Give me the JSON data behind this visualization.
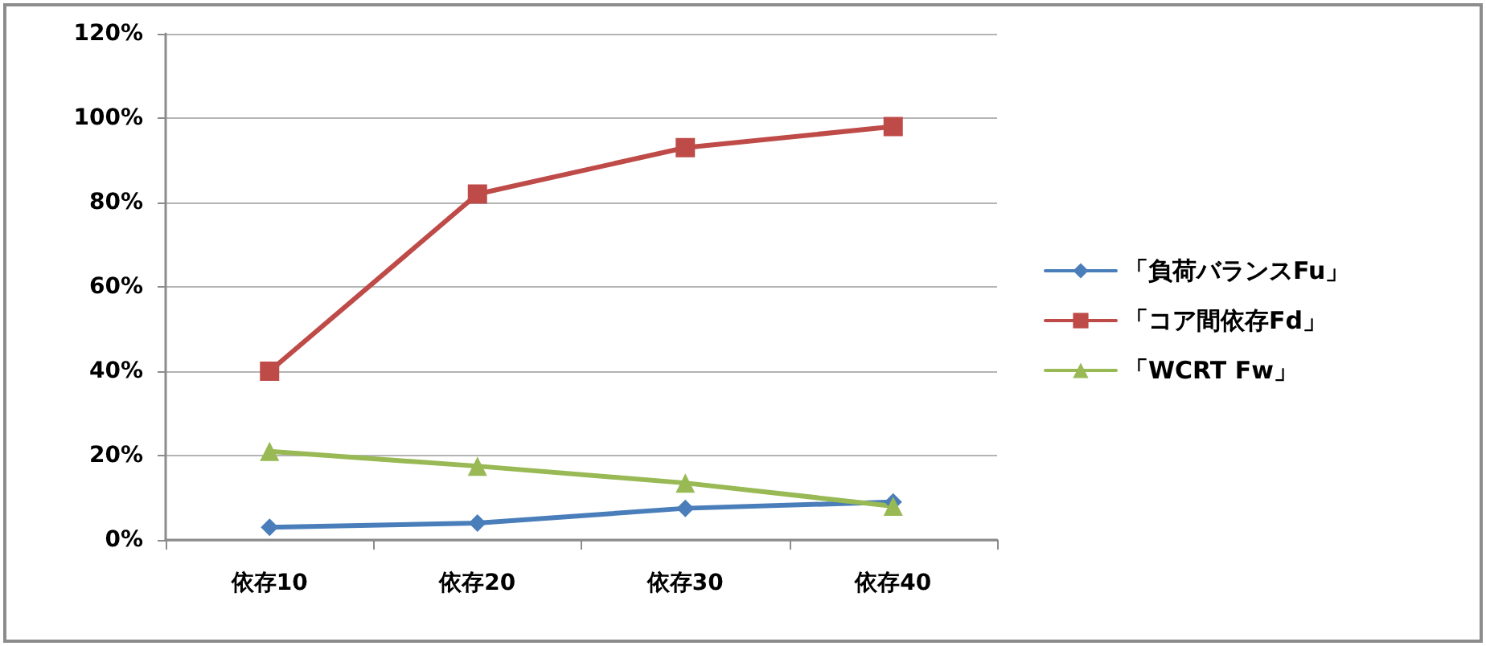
{
  "chart_data": {
    "type": "line",
    "categories": [
      "依存10",
      "依存20",
      "依存30",
      "依存40"
    ],
    "series": [
      {
        "name": "「負荷バランスFu」",
        "color": "#4a7ebb",
        "marker": "diamond",
        "values": [
          3,
          4,
          7.5,
          9
        ]
      },
      {
        "name": "「コア間依存Fd」",
        "color": "#be4b48",
        "marker": "square",
        "values": [
          40,
          82,
          93,
          98
        ]
      },
      {
        "name": "「WCRT Fw」",
        "color": "#98b954",
        "marker": "triangle",
        "values": [
          21,
          17.5,
          13.5,
          8
        ]
      }
    ],
    "ylim": [
      0,
      120
    ],
    "yticks": [
      {
        "value": 0,
        "label": "0%"
      },
      {
        "value": 20,
        "label": "20%"
      },
      {
        "value": 40,
        "label": "40%"
      },
      {
        "value": 60,
        "label": "60%"
      },
      {
        "value": 80,
        "label": "80%"
      },
      {
        "value": 100,
        "label": "100%"
      },
      {
        "value": 120,
        "label": "120%"
      }
    ],
    "grid": "y",
    "legend": "right",
    "line_style": "solid"
  }
}
